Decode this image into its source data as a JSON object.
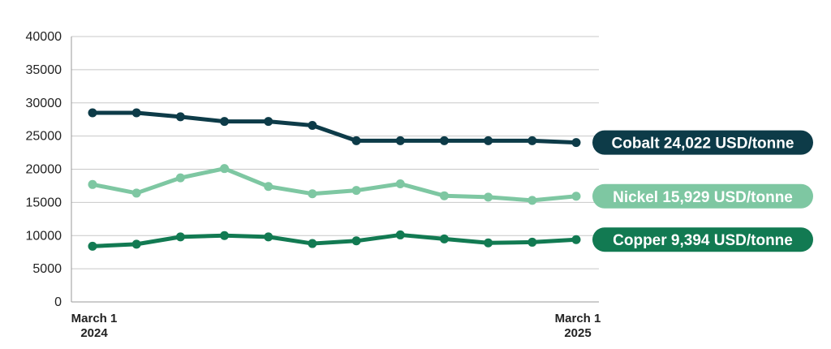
{
  "chart_data": {
    "type": "line",
    "x": [
      "March 1 2024",
      "",
      "",
      "",
      "",
      "",
      "",
      "",
      "",
      "",
      "",
      "March 1 2025"
    ],
    "ylim": [
      0,
      40000
    ],
    "yticks": [
      0,
      5000,
      10000,
      15000,
      20000,
      25000,
      30000,
      35000,
      40000
    ],
    "xticks": [
      {
        "index": 0,
        "line1": "March 1",
        "line2": "2024"
      },
      {
        "index": 11,
        "line1": "March 1",
        "line2": "2025"
      }
    ],
    "grid": true,
    "series": [
      {
        "name": "Cobalt",
        "label": "Cobalt 24,022 USD/tonne",
        "color": "#0d3b48",
        "values": [
          28500,
          28500,
          27900,
          27200,
          27200,
          26600,
          24300,
          24300,
          24300,
          24300,
          24300,
          24022
        ]
      },
      {
        "name": "Nickel",
        "label": "Nickel 15,929 USD/tonne",
        "color": "#7ec7a2",
        "values": [
          17700,
          16400,
          18700,
          20100,
          17400,
          16300,
          16800,
          17800,
          16000,
          15800,
          15300,
          15929
        ]
      },
      {
        "name": "Copper",
        "label": "Copper 9,394 USD/tonne",
        "color": "#127a52",
        "values": [
          8400,
          8700,
          9800,
          10000,
          9800,
          8800,
          9200,
          10100,
          9500,
          8900,
          9000,
          9394
        ]
      }
    ]
  }
}
